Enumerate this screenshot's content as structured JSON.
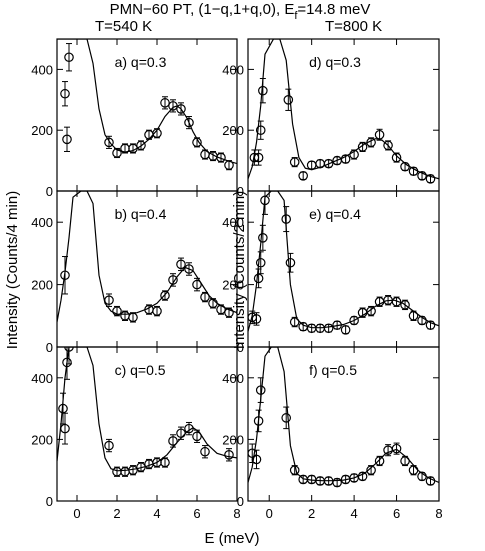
{
  "header": {
    "title": "PMN−60 PT, (1−q,1+q,0), E",
    "title_sub": "f",
    "title_tail": "=14.8 meV",
    "temp_left": "T=540 K",
    "temp_right": "T=800 K"
  },
  "axes": {
    "xlabel": "E (meV)",
    "ylabel_left": "Intensity (Counts/4 min)",
    "ylabel_right": "Intensity (Counts/2 min)"
  },
  "chart_data": [
    {
      "type": "scatter",
      "label": "a) q=0.3",
      "temperature": "T=540 K",
      "xlim": [
        -1,
        8
      ],
      "ylim": [
        0,
        500
      ],
      "xticks": [
        0,
        2,
        4,
        6,
        8
      ],
      "yticks": [
        0,
        200,
        400
      ],
      "show_xtick_labels": false,
      "show_ytick_labels": true,
      "x": [
        -0.6,
        -0.5,
        -0.4,
        1.6,
        2.0,
        2.4,
        2.8,
        3.2,
        3.6,
        4.0,
        4.4,
        4.8,
        5.2,
        5.6,
        6.0,
        6.4,
        6.8,
        7.2,
        7.6
      ],
      "y": [
        320,
        170,
        440,
        160,
        125,
        140,
        140,
        150,
        185,
        190,
        290,
        280,
        270,
        225,
        160,
        120,
        115,
        110,
        85
      ],
      "yerr": [
        40,
        40,
        45,
        20,
        15,
        15,
        15,
        15,
        15,
        15,
        20,
        20,
        20,
        20,
        15,
        15,
        15,
        15,
        15
      ],
      "fit": {
        "x": [
          -1,
          -0.7,
          -0.4,
          -0.2,
          0.2,
          0.5,
          0.8,
          1.1,
          1.4,
          1.7,
          2.0,
          2.4,
          2.8,
          3.2,
          3.6,
          4.0,
          4.4,
          4.8,
          5.0,
          5.2,
          5.5,
          5.8,
          6.1,
          6.5,
          7.0,
          7.5,
          8.0
        ],
        "y": [
          500,
          500,
          500,
          500,
          500,
          500,
          420,
          270,
          185,
          155,
          135,
          128,
          133,
          148,
          170,
          200,
          245,
          275,
          280,
          270,
          240,
          195,
          160,
          130,
          112,
          100,
          90
        ]
      }
    },
    {
      "type": "scatter",
      "label": "d) q=0.3",
      "temperature": "T=800 K",
      "xlim": [
        -1,
        8
      ],
      "ylim": [
        0,
        500
      ],
      "xticks": [
        0,
        2,
        4,
        6,
        8
      ],
      "yticks": [
        0,
        200,
        400
      ],
      "show_xtick_labels": false,
      "show_ytick_labels": true,
      "x": [
        -0.7,
        -0.5,
        -0.4,
        -0.3,
        0.9,
        1.2,
        1.6,
        2.0,
        2.4,
        2.8,
        3.2,
        3.6,
        4.0,
        4.4,
        4.8,
        5.2,
        5.6,
        6.0,
        6.4,
        6.8,
        7.2,
        7.6
      ],
      "y": [
        110,
        110,
        200,
        330,
        300,
        95,
        50,
        85,
        90,
        90,
        100,
        105,
        120,
        145,
        160,
        185,
        150,
        110,
        80,
        65,
        50,
        40
      ],
      "yerr": [
        25,
        25,
        30,
        40,
        35,
        15,
        12,
        12,
        12,
        12,
        12,
        12,
        15,
        15,
        15,
        18,
        15,
        15,
        12,
        12,
        12,
        12
      ],
      "fit": {
        "x": [
          -1,
          -0.8,
          -0.6,
          -0.4,
          -0.2,
          0.2,
          0.5,
          0.8,
          1.1,
          1.4,
          1.7,
          2.0,
          2.5,
          3.0,
          3.5,
          4.0,
          4.5,
          5.0,
          5.3,
          5.6,
          6.0,
          6.5,
          7.0,
          7.5,
          8.0
        ],
        "y": [
          40,
          80,
          160,
          280,
          450,
          500,
          500,
          430,
          220,
          110,
          75,
          70,
          80,
          95,
          110,
          130,
          155,
          172,
          168,
          150,
          115,
          85,
          65,
          50,
          40
        ]
      }
    },
    {
      "type": "scatter",
      "label": "b) q=0.4",
      "temperature": "T=540 K",
      "xlim": [
        -1,
        8
      ],
      "ylim": [
        0,
        500
      ],
      "xticks": [
        0,
        2,
        4,
        6,
        8
      ],
      "yticks": [
        0,
        200,
        400
      ],
      "show_xtick_labels": false,
      "show_ytick_labels": true,
      "x": [
        -0.6,
        1.6,
        2.0,
        2.4,
        2.8,
        3.6,
        4.0,
        4.4,
        4.8,
        5.2,
        5.6,
        6.0,
        6.4,
        6.8,
        7.2,
        7.6
      ],
      "y": [
        230,
        150,
        115,
        100,
        95,
        120,
        115,
        165,
        215,
        265,
        250,
        200,
        160,
        140,
        120,
        110
      ],
      "yerr": [
        60,
        20,
        15,
        15,
        15,
        15,
        15,
        15,
        20,
        20,
        20,
        20,
        15,
        15,
        15,
        15
      ],
      "fit": {
        "x": [
          -1,
          -0.8,
          -0.6,
          -0.4,
          -0.2,
          0.2,
          0.5,
          0.8,
          1.1,
          1.4,
          1.7,
          2.0,
          2.5,
          3.0,
          3.5,
          4.0,
          4.5,
          5.0,
          5.4,
          5.8,
          6.2,
          6.6,
          7.0,
          7.5,
          8.0
        ],
        "y": [
          80,
          150,
          240,
          350,
          480,
          500,
          500,
          460,
          230,
          140,
          115,
          105,
          105,
          110,
          122,
          140,
          175,
          225,
          255,
          245,
          205,
          165,
          140,
          122,
          110
        ]
      }
    },
    {
      "type": "scatter",
      "label": "e) q=0.4",
      "temperature": "T=800 K",
      "xlim": [
        -1,
        8
      ],
      "ylim": [
        0,
        500
      ],
      "xticks": [
        0,
        2,
        4,
        6,
        8
      ],
      "yticks": [
        0,
        200,
        400
      ],
      "show_xtick_labels": false,
      "show_ytick_labels": true,
      "x": [
        -0.8,
        -0.6,
        -0.5,
        -0.4,
        -0.3,
        -0.2,
        0.8,
        1.0,
        1.2,
        1.6,
        2.0,
        2.4,
        2.8,
        3.2,
        3.6,
        4.0,
        4.4,
        4.8,
        5.2,
        5.6,
        6.0,
        6.4,
        6.8,
        7.2,
        7.6
      ],
      "y": [
        95,
        90,
        220,
        270,
        350,
        470,
        410,
        270,
        80,
        65,
        60,
        60,
        60,
        70,
        55,
        85,
        110,
        115,
        145,
        150,
        145,
        135,
        100,
        85,
        70
      ],
      "yerr": [
        20,
        20,
        30,
        35,
        40,
        45,
        40,
        30,
        15,
        12,
        12,
        12,
        12,
        12,
        12,
        12,
        15,
        15,
        15,
        15,
        15,
        15,
        15,
        12,
        12
      ],
      "fit": {
        "x": [
          -1,
          -0.8,
          -0.6,
          -0.4,
          -0.2,
          0.1,
          0.4,
          0.7,
          1.0,
          1.3,
          1.6,
          2.0,
          2.5,
          3.0,
          3.5,
          4.0,
          4.5,
          5.0,
          5.5,
          5.9,
          6.3,
          6.8,
          7.2,
          7.6,
          8.0
        ],
        "y": [
          50,
          100,
          200,
          330,
          480,
          500,
          500,
          470,
          200,
          90,
          70,
          62,
          62,
          66,
          72,
          85,
          105,
          130,
          148,
          150,
          140,
          115,
          95,
          78,
          68
        ]
      }
    },
    {
      "type": "scatter",
      "label": "c) q=0.5",
      "temperature": "T=540 K",
      "xlim": [
        -1,
        8
      ],
      "ylim": [
        0,
        500
      ],
      "xticks": [
        0,
        2,
        4,
        6,
        8
      ],
      "yticks": [
        0,
        200,
        400
      ],
      "show_xtick_labels": true,
      "show_ytick_labels": true,
      "x": [
        -0.7,
        -0.6,
        -0.5,
        -0.4,
        1.6,
        2.0,
        2.4,
        2.8,
        3.2,
        3.6,
        4.0,
        4.4,
        4.8,
        5.2,
        5.6,
        6.0,
        6.4,
        7.6
      ],
      "y": [
        300,
        235,
        450,
        500,
        180,
        95,
        95,
        100,
        110,
        120,
        125,
        125,
        195,
        220,
        235,
        210,
        160,
        150
      ],
      "yerr": [
        50,
        50,
        55,
        55,
        20,
        15,
        15,
        15,
        15,
        15,
        15,
        15,
        20,
        20,
        20,
        20,
        20,
        20
      ],
      "fit": {
        "x": [
          -1,
          -0.8,
          -0.6,
          -0.4,
          -0.2,
          0.2,
          0.5,
          0.8,
          1.1,
          1.4,
          1.7,
          2.0,
          2.5,
          3.0,
          3.5,
          4.0,
          4.5,
          5.0,
          5.5,
          5.8,
          6.1,
          6.5,
          7.0,
          7.5,
          8.0
        ],
        "y": [
          130,
          250,
          400,
          500,
          500,
          500,
          500,
          440,
          250,
          140,
          105,
          98,
          100,
          105,
          113,
          125,
          150,
          190,
          225,
          238,
          225,
          185,
          155,
          145,
          140
        ]
      }
    },
    {
      "type": "scatter",
      "label": "f) q=0.5",
      "temperature": "T=800 K",
      "xlim": [
        -1,
        8
      ],
      "ylim": [
        0,
        500
      ],
      "xticks": [
        0,
        2,
        4,
        6,
        8
      ],
      "yticks": [
        0,
        200,
        400
      ],
      "show_xtick_labels": true,
      "show_ytick_labels": true,
      "x": [
        -0.8,
        -0.6,
        -0.5,
        -0.4,
        0.8,
        1.2,
        1.6,
        2.0,
        2.4,
        2.8,
        3.2,
        3.6,
        4.0,
        4.4,
        4.8,
        5.2,
        5.6,
        6.0,
        6.4,
        6.8,
        7.2,
        7.6
      ],
      "y": [
        155,
        135,
        260,
        360,
        270,
        100,
        70,
        70,
        65,
        65,
        60,
        70,
        75,
        80,
        100,
        130,
        165,
        170,
        130,
        100,
        80,
        65
      ],
      "yerr": [
        30,
        30,
        35,
        40,
        35,
        15,
        12,
        12,
        12,
        12,
        12,
        12,
        12,
        12,
        15,
        15,
        18,
        18,
        15,
        15,
        12,
        12
      ],
      "fit": {
        "x": [
          -1,
          -0.8,
          -0.6,
          -0.4,
          -0.2,
          0.1,
          0.4,
          0.7,
          1.0,
          1.3,
          1.6,
          2.0,
          2.5,
          3.0,
          3.5,
          4.0,
          4.5,
          5.0,
          5.5,
          6.0,
          6.5,
          7.0,
          7.5,
          8.0
        ],
        "y": [
          60,
          110,
          200,
          330,
          470,
          500,
          500,
          420,
          180,
          90,
          72,
          68,
          66,
          66,
          68,
          75,
          90,
          120,
          155,
          168,
          140,
          100,
          75,
          60
        ]
      }
    }
  ]
}
